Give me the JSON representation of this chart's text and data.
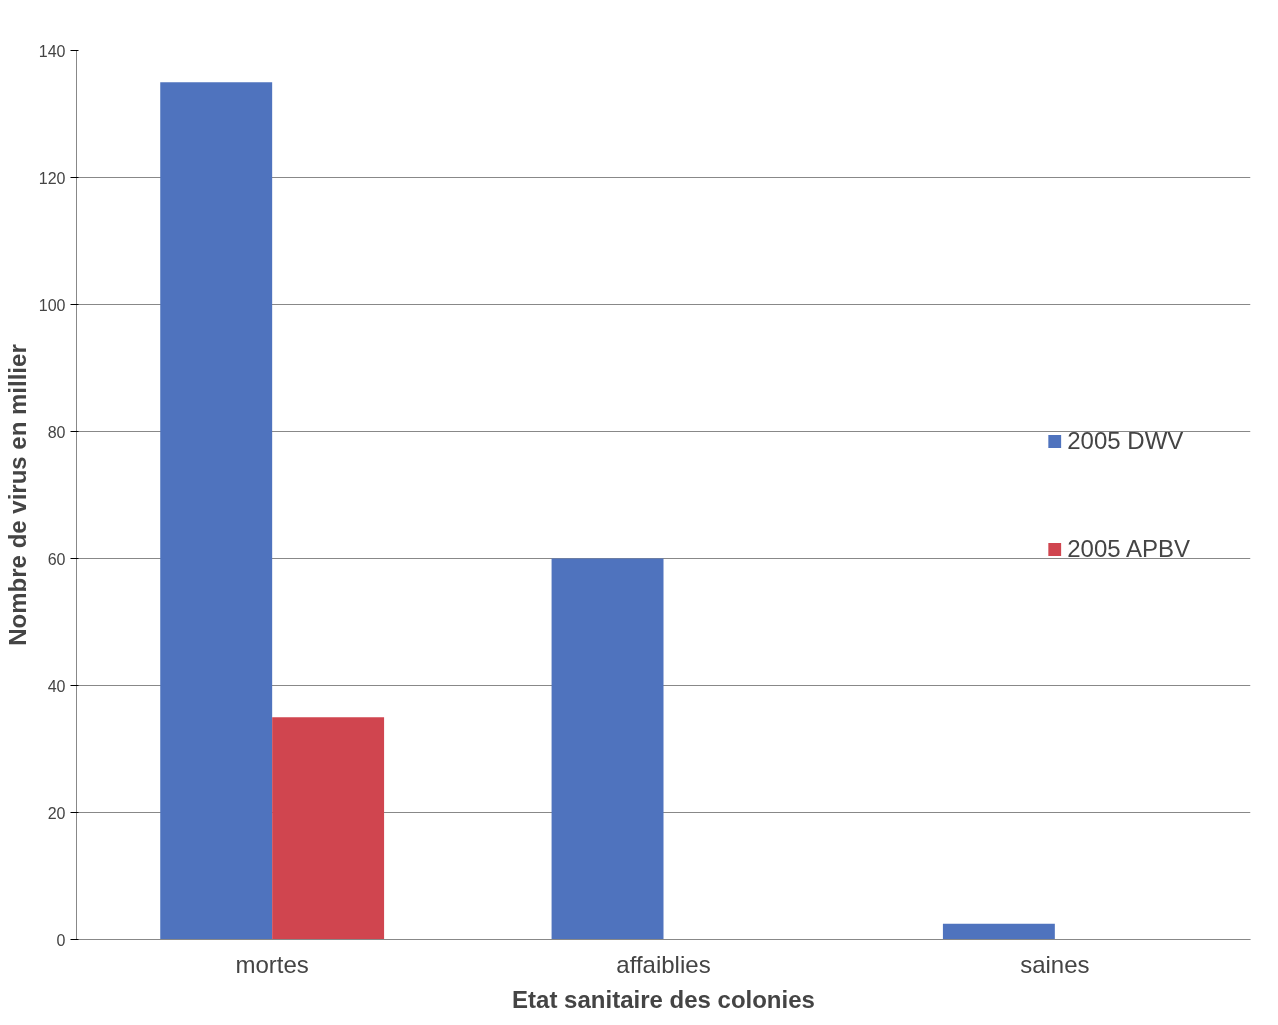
{
  "chart_data": {
    "type": "bar",
    "xlabel": "Etat sanitaire des colonies",
    "ylabel": "Nombre de virus en millier",
    "categories": [
      "mortes",
      "affaiblies",
      "saines"
    ],
    "series": [
      {
        "name": "2005 DWV",
        "color": "#4f73be",
        "values": [
          135,
          60,
          2.5
        ]
      },
      {
        "name": "2005 APBV",
        "color": "#d0454f",
        "values": [
          35,
          null,
          null
        ]
      }
    ],
    "ylim": [
      0,
      140
    ],
    "yticks": [
      0,
      20,
      40,
      60,
      80,
      100,
      120,
      140
    ],
    "grid": "y",
    "legend": "right"
  }
}
